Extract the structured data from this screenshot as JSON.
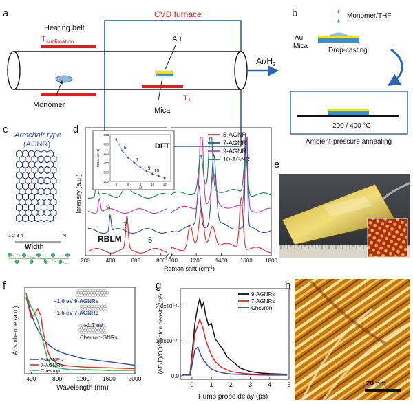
{
  "panels": {
    "a": {
      "letter": "a",
      "furnace_label": "CVD furnace",
      "heating_belt": "Heating belt",
      "t_sub_main": "T",
      "t_sub_sub": "sublimation",
      "au": "Au",
      "mica": "Mica",
      "t1_main": "T",
      "t1_sub": "1",
      "monomer": "Monomer",
      "gas_main": "Ar/H",
      "gas_sub": "2"
    },
    "b": {
      "letter": "b",
      "monomer_thf": "Monomer/THF",
      "au": "Au",
      "mica": "Mica",
      "drop_casting": "Drop-casting",
      "temp": "200 / 400 °C",
      "annealing": "Ambient-pressure annealing"
    },
    "c": {
      "letter": "c",
      "title1": "Armchair type",
      "title2": "(AGNR)",
      "index_start": "1 2 3 4",
      "index_end": "N",
      "width": "Width"
    },
    "d": {
      "letter": "d",
      "ylabel": "Intensity (a.u.)",
      "xlabel": "Raman shift (cm",
      "xlabel_sup": "-1",
      "xlabel_end": ")",
      "rblm": "RBLM",
      "peak_labels": [
        "10",
        "9",
        "7",
        "5"
      ]
    },
    "e": {
      "letter": "e"
    },
    "f": {
      "letter": "f",
      "ylabel": "Absorbance (a.u.)",
      "xlabel": "Wavelength (nm)",
      "gap_9": "~1.0 eV  9-AGNRs",
      "gap_7": "~1.6 eV  7-AGNRs",
      "chevron": "Chevron-GNRs",
      "gap_chev": "~1.7 eV"
    },
    "g": {
      "letter": "g",
      "ylabel": "(ΔE/E)/OD/Photon density (m²)",
      "xlabel": "Pump probe delay (ps)"
    },
    "h": {
      "letter": "h",
      "scale": "20 nm"
    }
  },
  "chart_data": [
    {
      "id": "d-raman",
      "type": "line",
      "title": "",
      "xlabel": "Raman shift (cm-1)",
      "ylabel": "Intensity (a.u.)",
      "x_ticks": [
        "200",
        "400",
        "600",
        "800",
        "1000",
        "1200",
        "1400",
        "1600",
        "1800"
      ],
      "xlim_left": [
        200,
        850
      ],
      "xlim_right": [
        1000,
        1800
      ],
      "legend": [
        "5-AGNR",
        "7-AGNR",
        "9-AGNR",
        "10-AGNR"
      ],
      "colors": [
        "#e8262b",
        "#2e4fa3",
        "#c13bb4",
        "#18814a"
      ],
      "series": [
        {
          "name": "5-AGNR",
          "offset": 0.0,
          "peaks": [
            [
              530,
              0.28,
              14
            ],
            [
              1150,
              0.2,
              25
            ],
            [
              1240,
              0.3,
              25
            ],
            [
              1330,
              0.18,
              30
            ],
            [
              1560,
              0.45,
              20
            ]
          ]
        },
        {
          "name": "7-AGNR",
          "offset": 0.17,
          "peaks": [
            [
              397,
              0.14,
              10
            ],
            [
              1220,
              0.35,
              20
            ],
            [
              1340,
              0.6,
              25
            ],
            [
              1600,
              0.95,
              12
            ]
          ]
        },
        {
          "name": "9-AGNR",
          "offset": 0.34,
          "peaks": [
            [
              311,
              0.12,
              12
            ],
            [
              1240,
              0.75,
              20
            ],
            [
              1340,
              0.25,
              25
            ],
            [
              1600,
              0.9,
              15
            ]
          ]
        },
        {
          "name": "10-AGNR",
          "offset": 0.47,
          "peaks": [
            [
              290,
              0.2,
              10
            ],
            [
              520,
              0.08,
              40
            ],
            [
              1235,
              0.3,
              25
            ],
            [
              1315,
              0.55,
              20
            ],
            [
              1595,
              0.35,
              20
            ]
          ]
        }
      ]
    },
    {
      "id": "d-inset-dft",
      "type": "scatter",
      "title": "DFT",
      "xlabel": "N",
      "ylabel": "RBLM (cm-1)",
      "x_ticks": [
        "4",
        "6",
        "8",
        "10",
        "12"
      ],
      "y_ticks": [
        "200",
        "300",
        "400",
        "500",
        "600",
        "700"
      ],
      "xlim": [
        3,
        13
      ],
      "ylim": [
        200,
        700
      ],
      "x": [
        4,
        5,
        6,
        7,
        8,
        9,
        10,
        11,
        12
      ],
      "y": [
        650,
        530,
        455,
        396,
        350,
        312,
        282,
        258,
        238
      ],
      "point_labels": {
        "5": "5",
        "7": "7",
        "9": "9",
        "10": "10"
      }
    },
    {
      "id": "f-absorbance",
      "type": "line",
      "xlabel": "Wavelength (nm)",
      "ylabel": "Absorbance (a.u.)",
      "x_ticks": [
        "400",
        "800",
        "1200",
        "1600",
        "2000"
      ],
      "xlim": [
        300,
        2000
      ],
      "ylim": [
        0,
        1
      ],
      "legend": [
        "9-AGNRs",
        "7-AGNRs",
        "Chevron"
      ],
      "colors": [
        "#2e4fa3",
        "#e8262b",
        "#2fb34a"
      ],
      "series": [
        {
          "name": "9-AGNRs",
          "x": [
            320,
            360,
            400,
            450,
            500,
            550,
            600,
            700,
            800,
            900,
            1000,
            1100,
            1200,
            1400,
            1600,
            1800,
            2000
          ],
          "y": [
            0.95,
            0.82,
            0.7,
            0.6,
            0.52,
            0.45,
            0.39,
            0.32,
            0.27,
            0.24,
            0.22,
            0.2,
            0.18,
            0.16,
            0.14,
            0.12,
            0.1
          ]
        },
        {
          "name": "7-AGNRs",
          "x": [
            320,
            360,
            400,
            450,
            500,
            550,
            580,
            650,
            700,
            800,
            900,
            1000,
            1200,
            1600,
            2000
          ],
          "y": [
            0.9,
            0.78,
            0.66,
            0.7,
            0.76,
            0.68,
            0.5,
            0.28,
            0.18,
            0.12,
            0.1,
            0.09,
            0.08,
            0.07,
            0.06
          ]
        },
        {
          "name": "Chevron",
          "x": [
            320,
            360,
            400,
            450,
            500,
            550,
            600,
            650,
            700,
            800,
            900,
            1000,
            1200,
            1600,
            2000
          ],
          "y": [
            0.93,
            0.86,
            0.78,
            0.72,
            0.62,
            0.48,
            0.32,
            0.18,
            0.11,
            0.07,
            0.06,
            0.05,
            0.05,
            0.04,
            0.04
          ]
        }
      ]
    },
    {
      "id": "g-pump-probe",
      "type": "line",
      "xlabel": "Pump probe delay (ps)",
      "ylabel": "(ΔE/E)/OD/Photon density (m²)",
      "x_ticks": [
        "0",
        "1",
        "2",
        "3",
        "4",
        "5"
      ],
      "y_ticks": [
        "0.0",
        "1.0x10⁻²¹",
        "2.0x10⁻²¹"
      ],
      "xlim": [
        -0.6,
        5
      ],
      "ylim": [
        -0.1,
        2.5
      ],
      "legend": [
        "9-AGNRs",
        "7-AGNRs",
        "Chevron"
      ],
      "colors": [
        "#111111",
        "#e8262b",
        "#2e4fa3"
      ],
      "series": [
        {
          "name": "9-AGNRs",
          "x": [
            -0.5,
            -0.1,
            0.0,
            0.15,
            0.3,
            0.4,
            0.5,
            0.6,
            0.7,
            0.85,
            1.0,
            1.2,
            1.4,
            1.6,
            1.8,
            2.0,
            2.5,
            3.0,
            3.5,
            4.0,
            4.5,
            4.9
          ],
          "y": [
            0.02,
            0.05,
            0.6,
            1.5,
            2.0,
            2.22,
            1.95,
            2.1,
            1.75,
            1.45,
            1.5,
            1.05,
            0.9,
            0.75,
            0.55,
            0.45,
            0.22,
            0.12,
            0.08,
            0.06,
            0.05,
            0.04
          ]
        },
        {
          "name": "7-AGNRs",
          "x": [
            -0.5,
            -0.1,
            0.0,
            0.15,
            0.3,
            0.4,
            0.55,
            0.7,
            0.85,
            1.0,
            1.2,
            1.5,
            2.0,
            2.5,
            3.0,
            4.0,
            4.9
          ],
          "y": [
            0.02,
            0.03,
            0.5,
            1.2,
            1.45,
            1.62,
            1.4,
            1.05,
            0.8,
            0.6,
            0.4,
            0.25,
            0.12,
            0.08,
            0.05,
            0.03,
            0.02
          ]
        },
        {
          "name": "Chevron",
          "x": [
            -0.5,
            -0.1,
            0.0,
            0.15,
            0.3,
            0.45,
            0.6,
            0.8,
            1.0,
            1.3,
            1.6,
            2.0,
            3.0,
            4.0,
            4.9
          ],
          "y": [
            0.02,
            0.02,
            0.3,
            0.75,
            0.82,
            0.6,
            0.45,
            0.3,
            0.2,
            0.12,
            0.08,
            0.05,
            0.03,
            0.02,
            0.02
          ]
        }
      ]
    }
  ]
}
